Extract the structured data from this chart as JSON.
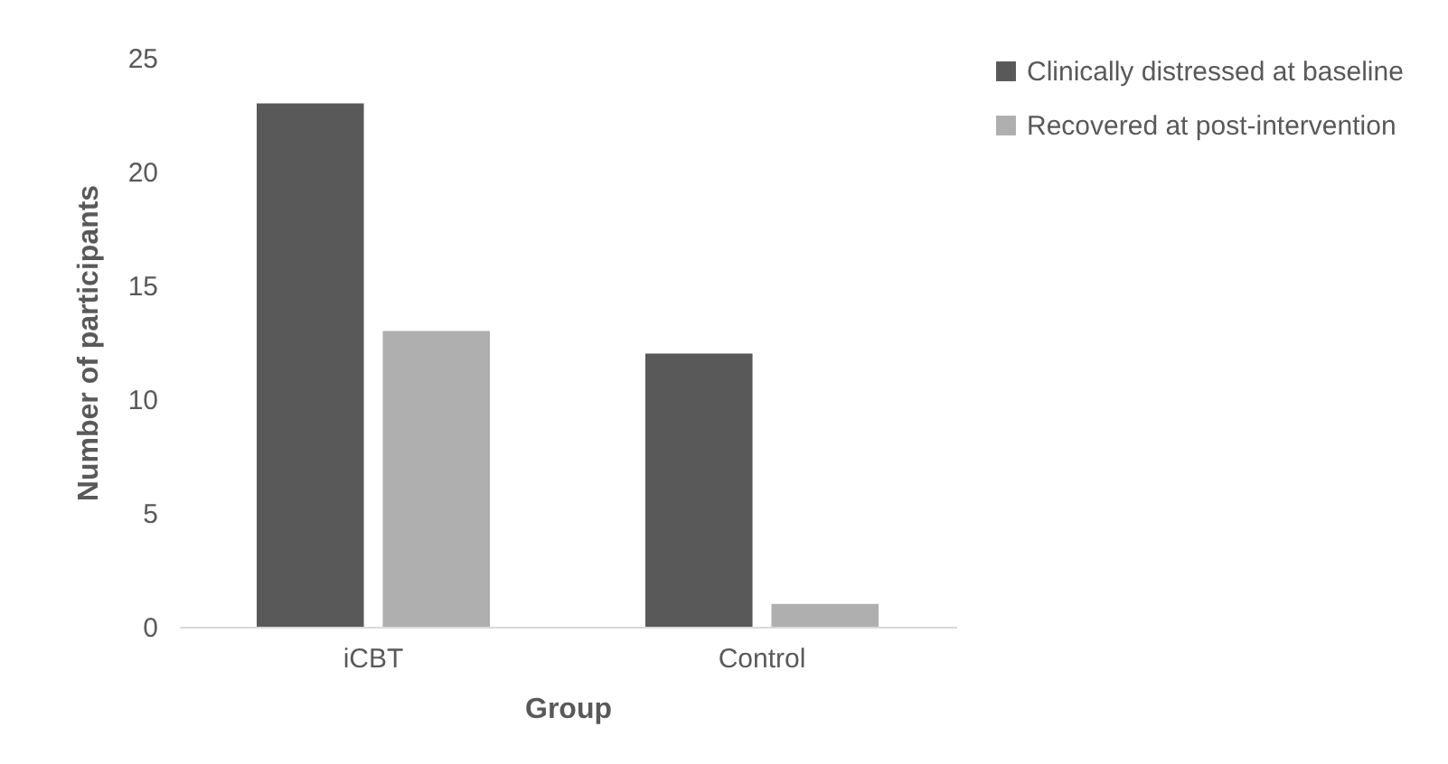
{
  "chart_data": {
    "type": "bar",
    "xlabel": "Group",
    "ylabel": "Number of participants",
    "categories": [
      "iCBT",
      "Control"
    ],
    "series": [
      {
        "name": "Clinically distressed at baseline",
        "color": "#595959",
        "values": [
          23,
          12
        ]
      },
      {
        "name": "Recovered at post-intervention",
        "color": "#afafaf",
        "values": [
          13,
          1
        ]
      }
    ],
    "ylim": [
      0,
      25
    ],
    "yticks": [
      0,
      5,
      10,
      15,
      20,
      25
    ],
    "legend": "right"
  }
}
